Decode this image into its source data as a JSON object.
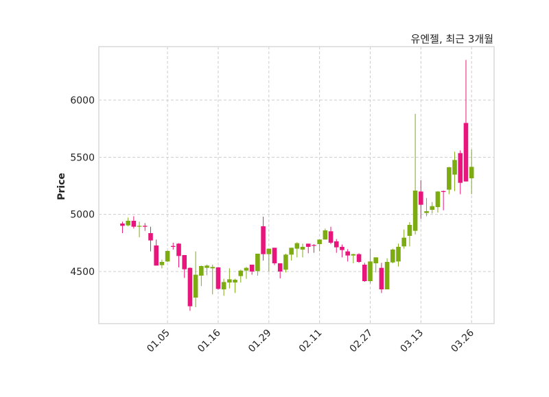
{
  "chart_data": {
    "type": "candlestick",
    "title": "유엔젤, 최근 3개월",
    "xlabel": "",
    "ylabel": "Price",
    "ylim": [
      4044,
      6468
    ],
    "xlim": [
      -4.2,
      66
    ],
    "grid": true,
    "colors": {
      "up": "#7cac12",
      "down": "#e8167c",
      "grid": "#cccccc",
      "frame": "#d9d9d9"
    },
    "yticks": [
      4500,
      5000,
      5500,
      6000
    ],
    "xticks": [
      {
        "index": 8,
        "label": "01.05"
      },
      {
        "index": 17,
        "label": "01.16"
      },
      {
        "index": 26,
        "label": "01.29"
      },
      {
        "index": 35,
        "label": "02.11"
      },
      {
        "index": 44,
        "label": "02.27"
      },
      {
        "index": 53,
        "label": "03.13"
      },
      {
        "index": 62,
        "label": "03.26"
      }
    ],
    "ohlc": [
      [
        4920,
        4936,
        4836,
        4900
      ],
      [
        4904,
        4972,
        4896,
        4944
      ],
      [
        4944,
        4984,
        4876,
        4892
      ],
      [
        4892,
        4936,
        4800,
        4900
      ],
      [
        4900,
        4924,
        4856,
        4892
      ],
      [
        4836,
        4892,
        4676,
        4772
      ],
      [
        4728,
        4780,
        4552,
        4552
      ],
      [
        4556,
        4604,
        4528,
        4584
      ],
      [
        4588,
        4684,
        4584,
        4680
      ],
      [
        4724,
        4752,
        4692,
        4716
      ],
      [
        4744,
        4748,
        4536,
        4636
      ],
      [
        4644,
        4644,
        4444,
        4520
      ],
      [
        4532,
        4536,
        4156,
        4196
      ],
      [
        4272,
        4676,
        4188,
        4472
      ],
      [
        4464,
        4552,
        4372,
        4548
      ],
      [
        4532,
        4560,
        4468,
        4552
      ],
      [
        4528,
        4560,
        4300,
        4540
      ],
      [
        4536,
        4540,
        4340,
        4348
      ],
      [
        4344,
        4436,
        4288,
        4408
      ],
      [
        4404,
        4528,
        4352,
        4432
      ],
      [
        4404,
        4436,
        4312,
        4428
      ],
      [
        4460,
        4516,
        4404,
        4508
      ],
      [
        4508,
        4540,
        4436,
        4532
      ],
      [
        4560,
        4560,
        4472,
        4500
      ],
      [
        4504,
        4656,
        4464,
        4656
      ],
      [
        4896,
        4980,
        4596,
        4652
      ],
      [
        4652,
        4700,
        4500,
        4700
      ],
      [
        4708,
        4708,
        4556,
        4572
      ],
      [
        4572,
        4572,
        4440,
        4500
      ],
      [
        4516,
        4656,
        4492,
        4648
      ],
      [
        4648,
        4708,
        4596,
        4708
      ],
      [
        4700,
        4756,
        4624,
        4748
      ],
      [
        4692,
        4744,
        4624,
        4716
      ],
      [
        4744,
        4744,
        4660,
        4716
      ],
      [
        4732,
        4740,
        4664,
        4728
      ],
      [
        4740,
        4780,
        4676,
        4780
      ],
      [
        4780,
        4876,
        4780,
        4860
      ],
      [
        4852,
        4892,
        4740,
        4752
      ],
      [
        4764,
        4784,
        4664,
        4712
      ],
      [
        4716,
        4736,
        4624,
        4688
      ],
      [
        4676,
        4696,
        4588,
        4640
      ],
      [
        4640,
        4656,
        4572,
        4652
      ],
      [
        4652,
        4660,
        4576,
        4584
      ],
      [
        4560,
        4576,
        4410,
        4416
      ],
      [
        4416,
        4700,
        4396,
        4588
      ],
      [
        4572,
        4624,
        4492,
        4624
      ],
      [
        4532,
        4576,
        4312,
        4344
      ],
      [
        4344,
        4616,
        4344,
        4584
      ],
      [
        4580,
        4700,
        4572,
        4692
      ],
      [
        4588,
        4744,
        4544,
        4716
      ],
      [
        4720,
        4868,
        4700,
        4796
      ],
      [
        4812,
        4932,
        4720,
        4908
      ],
      [
        4856,
        5880,
        4824,
        5208
      ],
      [
        5200,
        5300,
        4960,
        5084
      ],
      [
        5012,
        5144,
        4984,
        5028
      ],
      [
        5040,
        5108,
        5008,
        5072
      ],
      [
        5064,
        5204,
        5016,
        5200
      ],
      [
        5204,
        5208,
        5036,
        5196
      ],
      [
        5216,
        5416,
        5176,
        5412
      ],
      [
        5348,
        5548,
        5204,
        5476
      ],
      [
        5536,
        5560,
        5176,
        5276
      ],
      [
        5800,
        6352,
        5288,
        5288
      ],
      [
        5316,
        5568,
        5176,
        5416
      ]
    ]
  }
}
